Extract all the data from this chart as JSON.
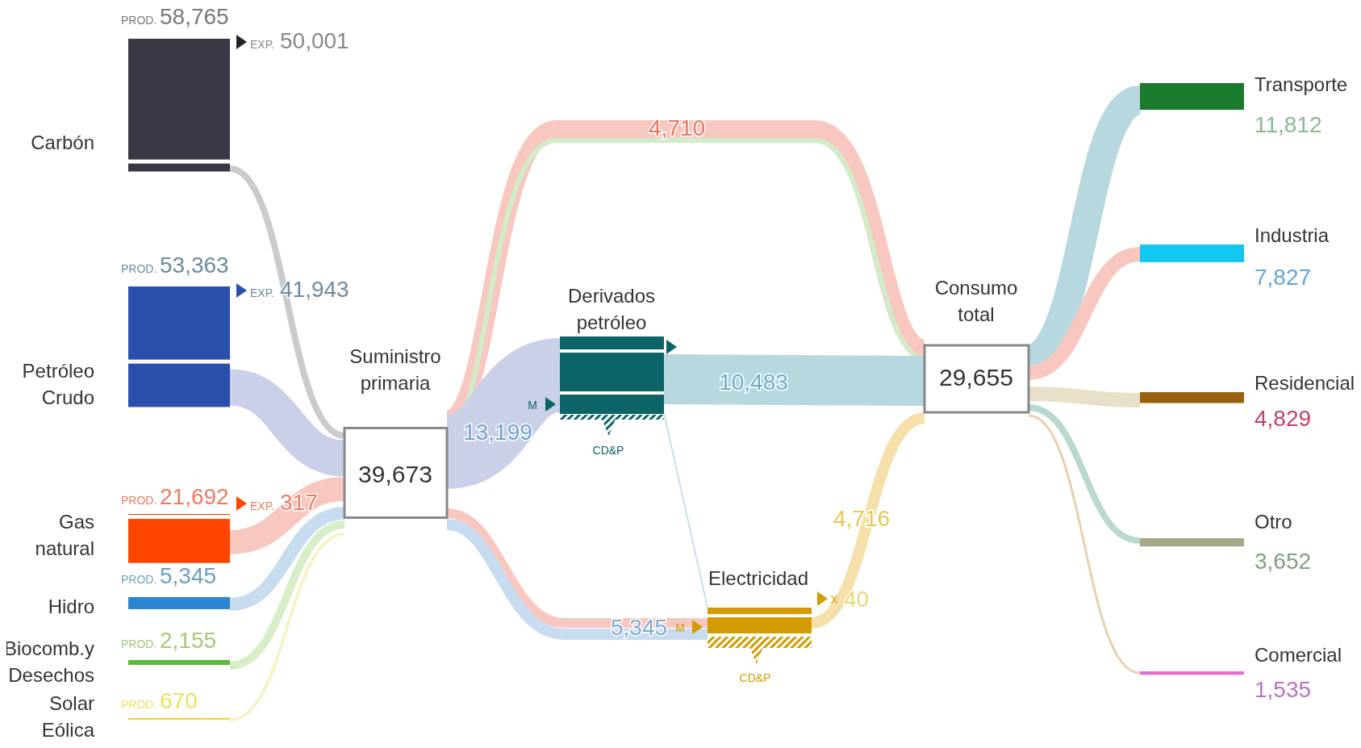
{
  "chart_data": {
    "type": "other",
    "categories": [
      "Carbón",
      "Petróleo Crudo",
      "Gas natural",
      "Hidro",
      "Biocomb.y Desechos",
      "Solar Eólica",
      "Suministro primaria",
      "Derivados petróleo",
      "Electricidad",
      "Consumo total",
      "Transporte",
      "Industria",
      "Residencial",
      "Otro",
      "Comercial"
    ],
    "values": [
      58765,
      53363,
      21692,
      5345,
      2155,
      670,
      39673,
      null,
      null,
      29655,
      11812,
      7827,
      4829,
      3652,
      1535
    ],
    "value_labels": [
      "58,765",
      "53,363",
      "21,692",
      "5,345",
      "2,155",
      "670",
      "39,673",
      null,
      null,
      "29,655",
      "11,812",
      "7,827",
      "4,829",
      "3,652",
      "1,535"
    ],
    "colors": [
      "#3a3845",
      "#2a4fad",
      "#ff4500",
      "#2a86d0",
      "#5cbb3a",
      "#f2d21b",
      "#ffffff",
      "#0d6466",
      "#d49b00",
      "#ffffff",
      "#1a7a2e",
      "#12c8f0",
      "#9a6010",
      "#a6a88a",
      "#e070d0"
    ],
    "annotations": [
      "PROD.",
      "EXP.",
      "M",
      "CD&P",
      "X",
      "50,001",
      "41,943",
      "317",
      "4,710",
      "13,199",
      "10,483",
      "5,345",
      "4,716",
      "40"
    ]
  }
}
